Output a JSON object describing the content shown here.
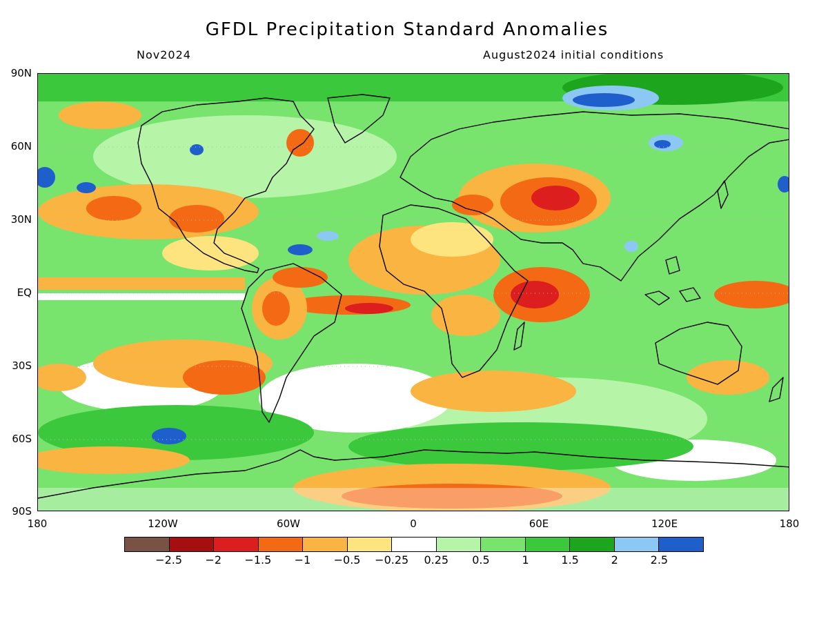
{
  "title": "GFDL Precipitation Standard Anomalies",
  "subtitle_left": "Nov2024",
  "subtitle_right": "August2024 initial conditions",
  "lat_labels": [
    "90N",
    "60N",
    "30N",
    "EQ",
    "30S",
    "60S",
    "90S"
  ],
  "lon_labels": [
    "180",
    "120W",
    "60W",
    "0",
    "60E",
    "120E",
    "180"
  ],
  "colorbar": {
    "colors": [
      "#7a5245",
      "#a50f0f",
      "#dc1e1e",
      "#f46a14",
      "#fab441",
      "#fde47f",
      "#ffffff",
      "#b6f4a8",
      "#78e46e",
      "#3cc83c",
      "#1ea51e",
      "#8cc8f4",
      "#1f5fcc"
    ],
    "labels": [
      "-2.5",
      "-2",
      "-1.5",
      "-1",
      "-0.5",
      "-0.25",
      "0.25",
      "0.5",
      "1",
      "1.5",
      "2",
      "2.5"
    ]
  },
  "land_color": "#000000"
}
